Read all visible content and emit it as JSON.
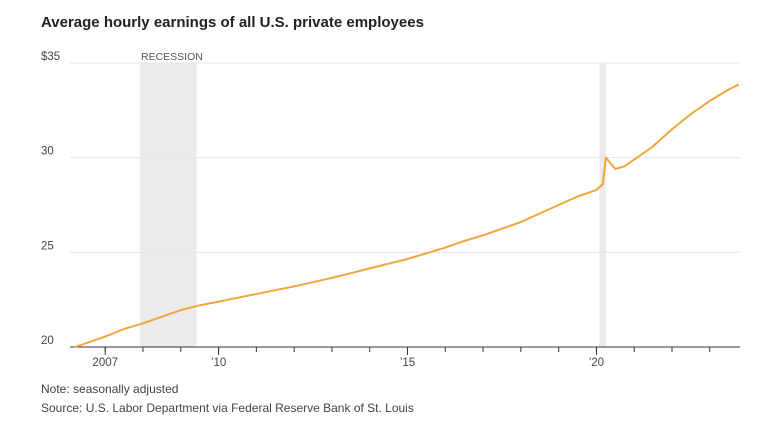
{
  "title": "Average hourly earnings of all U.S. private employees",
  "note": "Note: seasonally adjusted",
  "source": "Source: U.S. Labor Department via Federal Reserve Bank of St. Louis",
  "colors": {
    "line": "#f0a63c",
    "recession": "#ebebeb",
    "grid": "#e6e6e6",
    "axis": "#333333"
  },
  "chart_data": {
    "type": "line",
    "title": "Average hourly earnings of all U.S. private employees",
    "xlabel": "",
    "ylabel": "",
    "xlim": [
      2006.2,
      2023.8
    ],
    "ylim": [
      20,
      35
    ],
    "y_ticks": [
      {
        "value": 35,
        "label": "$35"
      },
      {
        "value": 30,
        "label": "30"
      },
      {
        "value": 25,
        "label": "25"
      },
      {
        "value": 20,
        "label": "20"
      }
    ],
    "x_ticks": [
      {
        "value": 2007,
        "label": "2007"
      },
      {
        "value": 2010,
        "label": "’10"
      },
      {
        "value": 2015,
        "label": "’15"
      },
      {
        "value": 2020,
        "label": "’20"
      }
    ],
    "x_minor_ticks": [
      2006,
      2007,
      2008,
      2009,
      2010,
      2011,
      2012,
      2013,
      2014,
      2015,
      2016,
      2017,
      2018,
      2019,
      2020,
      2021,
      2022,
      2023
    ],
    "grid": true,
    "recessions": [
      {
        "start": 2007.92,
        "end": 2009.42,
        "label": "RECESSION"
      },
      {
        "start": 2020.08,
        "end": 2020.25,
        "label": ""
      }
    ],
    "series": [
      {
        "points": [
          [
            2006.2,
            20.0
          ],
          [
            2006.5,
            20.2
          ],
          [
            2007.0,
            20.55
          ],
          [
            2007.5,
            20.95
          ],
          [
            2008.0,
            21.25
          ],
          [
            2008.5,
            21.6
          ],
          [
            2009.0,
            21.95
          ],
          [
            2009.5,
            22.2
          ],
          [
            2010.0,
            22.4
          ],
          [
            2010.5,
            22.6
          ],
          [
            2011.0,
            22.8
          ],
          [
            2011.5,
            23.0
          ],
          [
            2012.0,
            23.2
          ],
          [
            2012.5,
            23.42
          ],
          [
            2013.0,
            23.65
          ],
          [
            2013.5,
            23.9
          ],
          [
            2014.0,
            24.15
          ],
          [
            2014.5,
            24.4
          ],
          [
            2015.0,
            24.65
          ],
          [
            2015.5,
            24.95
          ],
          [
            2016.0,
            25.25
          ],
          [
            2016.5,
            25.6
          ],
          [
            2017.0,
            25.9
          ],
          [
            2017.5,
            26.25
          ],
          [
            2018.0,
            26.6
          ],
          [
            2018.5,
            27.05
          ],
          [
            2019.0,
            27.5
          ],
          [
            2019.5,
            27.95
          ],
          [
            2020.0,
            28.3
          ],
          [
            2020.17,
            28.6
          ],
          [
            2020.25,
            30.0
          ],
          [
            2020.5,
            29.4
          ],
          [
            2020.75,
            29.55
          ],
          [
            2021.0,
            29.9
          ],
          [
            2021.5,
            30.6
          ],
          [
            2022.0,
            31.5
          ],
          [
            2022.5,
            32.3
          ],
          [
            2023.0,
            33.0
          ],
          [
            2023.5,
            33.6
          ],
          [
            2023.75,
            33.85
          ]
        ]
      }
    ]
  }
}
